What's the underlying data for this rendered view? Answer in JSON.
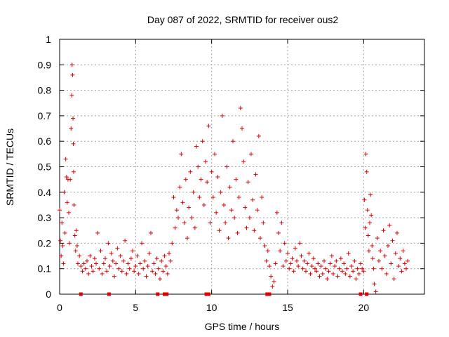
{
  "chart_data": {
    "type": "scatter",
    "title": "Day 087 of 2022, SRMTID for receiver ous2",
    "xlabel": "GPS time / hours",
    "ylabel": "SRMTID / TECUs",
    "xlim": [
      0,
      24
    ],
    "ylim": [
      0,
      1
    ],
    "xticks": [
      0,
      5,
      10,
      15,
      20
    ],
    "xtick_labels": [
      "0",
      "5",
      "10",
      "15",
      "20"
    ],
    "yticks": [
      0,
      0.1,
      0.2,
      0.3,
      0.4,
      0.5,
      0.6,
      0.7,
      0.8,
      0.9,
      1
    ],
    "ytick_labels": [
      "0",
      "0.1",
      "0.2",
      "0.3",
      "0.4",
      "0.5",
      "0.6",
      "0.7",
      "0.8",
      "0.9",
      "1"
    ],
    "grid": true,
    "marker": "plus",
    "color": "#e00000",
    "series": [
      {
        "name": "SRMTID",
        "x": [
          0.0,
          0.05,
          0.1,
          0.15,
          0.2,
          0.25,
          0.3,
          0.35,
          0.4,
          0.45,
          0.5,
          0.55,
          0.6,
          0.65,
          0.7,
          0.75,
          0.8,
          0.82,
          0.85,
          0.88,
          0.9,
          0.92,
          0.95,
          1.0,
          1.05,
          1.1,
          1.15,
          1.2,
          1.3,
          1.4,
          1.5,
          1.6,
          1.7,
          1.8,
          1.9,
          2.0,
          2.1,
          2.2,
          2.3,
          2.4,
          2.5,
          2.6,
          2.7,
          2.8,
          2.9,
          3.0,
          3.1,
          3.2,
          3.3,
          3.4,
          3.5,
          3.6,
          3.7,
          3.8,
          3.9,
          4.0,
          4.1,
          4.2,
          4.3,
          4.4,
          4.5,
          4.6,
          4.7,
          4.8,
          4.9,
          5.0,
          5.1,
          5.2,
          5.3,
          5.4,
          5.5,
          5.6,
          5.7,
          5.8,
          5.9,
          6.0,
          6.1,
          6.2,
          6.3,
          6.4,
          6.5,
          6.6,
          6.7,
          6.8,
          6.9,
          7.0,
          7.1,
          7.2,
          7.3,
          7.4,
          7.5,
          7.6,
          7.7,
          7.8,
          7.9,
          8.0,
          8.1,
          8.2,
          8.3,
          8.4,
          8.5,
          8.6,
          8.7,
          8.8,
          8.9,
          9.0,
          9.1,
          9.2,
          9.3,
          9.4,
          9.5,
          9.6,
          9.7,
          9.8,
          9.9,
          10.0,
          10.1,
          10.2,
          10.3,
          10.4,
          10.5,
          10.6,
          10.7,
          10.8,
          10.9,
          11.0,
          11.1,
          11.2,
          11.3,
          11.4,
          11.5,
          11.6,
          11.7,
          11.8,
          11.9,
          12.0,
          12.1,
          12.2,
          12.3,
          12.4,
          12.5,
          12.6,
          12.7,
          12.8,
          12.9,
          13.0,
          13.1,
          13.2,
          13.3,
          13.4,
          13.5,
          13.6,
          13.7,
          13.8,
          13.9,
          14.0,
          14.1,
          14.2,
          14.3,
          14.4,
          14.5,
          14.6,
          14.7,
          14.8,
          14.9,
          15.0,
          15.1,
          15.2,
          15.3,
          15.4,
          15.5,
          15.6,
          15.7,
          15.8,
          15.9,
          16.0,
          16.1,
          16.2,
          16.3,
          16.4,
          16.5,
          16.6,
          16.7,
          16.8,
          16.9,
          17.0,
          17.1,
          17.2,
          17.3,
          17.4,
          17.5,
          17.6,
          17.7,
          17.8,
          17.9,
          18.0,
          18.1,
          18.2,
          18.3,
          18.4,
          18.5,
          18.6,
          18.7,
          18.8,
          18.9,
          19.0,
          19.1,
          19.2,
          19.3,
          19.4,
          19.5,
          19.6,
          19.7,
          19.8,
          19.9,
          20.0,
          20.05,
          20.1,
          20.15,
          20.2,
          20.25,
          20.3,
          20.35,
          20.4,
          20.45,
          20.5,
          20.55,
          20.6,
          20.65,
          20.7,
          20.8,
          20.9,
          21.0,
          21.1,
          21.2,
          21.3,
          21.4,
          21.5,
          21.6,
          21.7,
          21.8,
          21.9,
          22.0,
          22.1,
          22.2,
          22.3,
          22.4,
          22.5,
          22.6,
          22.7,
          22.8,
          22.9
        ],
        "y": [
          0.33,
          0.21,
          0.15,
          0.28,
          0.19,
          0.12,
          0.4,
          0.24,
          0.53,
          0.46,
          0.36,
          0.45,
          0.32,
          0.2,
          0.45,
          0.65,
          0.78,
          0.9,
          0.86,
          0.69,
          0.59,
          0.48,
          0.35,
          0.23,
          0.17,
          0.25,
          0.19,
          0.12,
          0.15,
          0.11,
          0.09,
          0.12,
          0.1,
          0.13,
          0.08,
          0.15,
          0.11,
          0.09,
          0.14,
          0.12,
          0.24,
          0.1,
          0.17,
          0.08,
          0.12,
          0.14,
          0.09,
          0.2,
          0.11,
          0.16,
          0.13,
          0.07,
          0.12,
          0.18,
          0.1,
          0.15,
          0.09,
          0.13,
          0.21,
          0.08,
          0.12,
          0.1,
          0.14,
          0.17,
          0.09,
          0.11,
          0.15,
          0.08,
          0.12,
          0.2,
          0.1,
          0.13,
          0.07,
          0.11,
          0.16,
          0.24,
          0.09,
          0.12,
          0.08,
          0.14,
          0.1,
          0.06,
          0.13,
          0.09,
          0.15,
          0.11,
          0.08,
          0.16,
          0.13,
          0.2,
          0.38,
          0.26,
          0.33,
          0.3,
          0.42,
          0.55,
          0.36,
          0.28,
          0.45,
          0.22,
          0.34,
          0.48,
          0.3,
          0.4,
          0.26,
          0.58,
          0.5,
          0.38,
          0.45,
          0.6,
          0.35,
          0.52,
          0.44,
          0.66,
          0.28,
          0.48,
          0.38,
          0.55,
          0.32,
          0.46,
          0.25,
          0.4,
          0.7,
          0.35,
          0.28,
          0.5,
          0.22,
          0.42,
          0.33,
          0.6,
          0.3,
          0.45,
          0.24,
          0.38,
          0.73,
          0.65,
          0.52,
          0.34,
          0.26,
          0.44,
          0.3,
          0.55,
          0.37,
          0.25,
          0.47,
          0.33,
          0.62,
          0.22,
          0.38,
          0.28,
          0.19,
          0.13,
          0.17,
          0.11,
          0.07,
          0.03,
          0.05,
          0.12,
          0.32,
          0.24,
          0.17,
          0.28,
          0.11,
          0.2,
          0.13,
          0.16,
          0.1,
          0.12,
          0.14,
          0.09,
          0.18,
          0.13,
          0.11,
          0.2,
          0.15,
          0.1,
          0.13,
          0.09,
          0.12,
          0.16,
          0.08,
          0.11,
          0.14,
          0.1,
          0.09,
          0.12,
          0.07,
          0.11,
          0.08,
          0.13,
          0.1,
          0.06,
          0.09,
          0.12,
          0.15,
          0.08,
          0.11,
          0.13,
          0.07,
          0.1,
          0.14,
          0.09,
          0.12,
          0.08,
          0.1,
          0.16,
          0.07,
          0.11,
          0.09,
          0.13,
          0.06,
          0.1,
          0.08,
          0.12,
          0.1,
          0.09,
          0.37,
          0.26,
          0.55,
          0.48,
          0.33,
          0.23,
          0.17,
          0.28,
          0.39,
          0.31,
          0.19,
          0.14,
          0.1,
          0.04,
          0.01,
          0.22,
          0.13,
          0.17,
          0.1,
          0.25,
          0.15,
          0.08,
          0.19,
          0.27,
          0.12,
          0.21,
          0.06,
          0.16,
          0.24,
          0.11,
          0.14,
          0.09,
          0.17,
          0.12,
          0.1,
          0.13
        ],
        "zero_x": [
          1.4,
          3.25,
          6.45,
          6.9,
          7.05,
          9.65,
          9.8,
          13.65,
          13.8,
          19.8,
          20.2
        ]
      }
    ]
  }
}
